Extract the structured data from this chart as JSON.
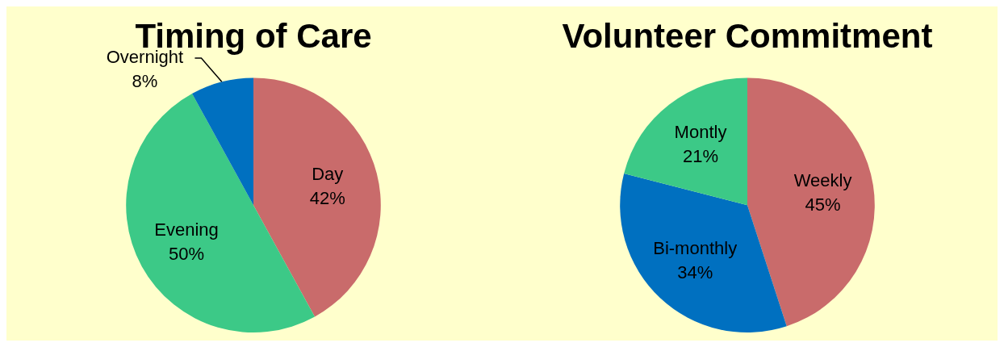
{
  "chart_data": [
    {
      "type": "pie",
      "title": "Timing of Care",
      "categories": [
        "Day",
        "Evening",
        "Overnight"
      ],
      "values": [
        42,
        50,
        8
      ],
      "colors": [
        "#c96b6b",
        "#3cc987",
        "#0070c0"
      ],
      "value_labels": [
        "42%",
        "50%",
        "8%"
      ]
    },
    {
      "type": "pie",
      "title": "Volunteer Commitment",
      "categories": [
        "Weekly",
        "Bi-monthly",
        "Montly"
      ],
      "values": [
        45,
        34,
        21
      ],
      "colors": [
        "#c96b6b",
        "#0070c0",
        "#3cc987"
      ],
      "value_labels": [
        "45%",
        "34%",
        "21%"
      ]
    }
  ]
}
